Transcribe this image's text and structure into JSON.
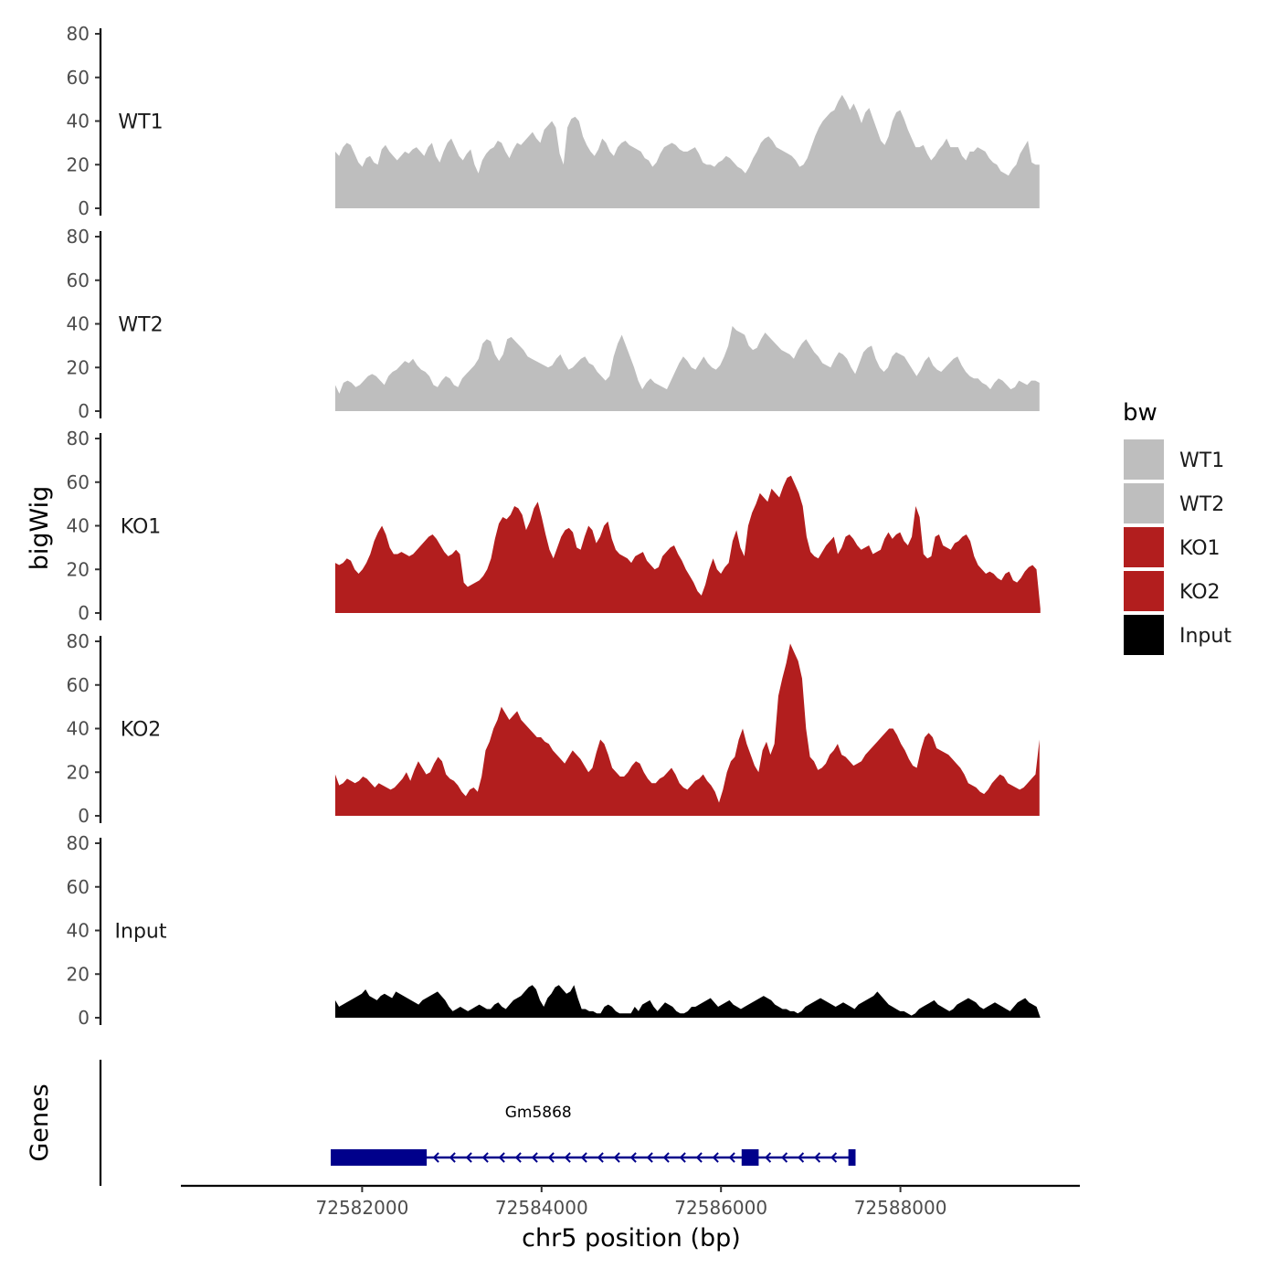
{
  "chart_data": {
    "type": "area",
    "xlabel": "chr5 position (bp)",
    "ylabel": "bigWig",
    "genes_label": "Genes",
    "xlim": [
      72580000,
      72590000
    ],
    "x_ticks": [
      72582000,
      72584000,
      72586000,
      72588000
    ],
    "x_tick_labels": [
      "72582000",
      "72584000",
      "72586000",
      "72588000"
    ],
    "ylim": [
      0,
      80
    ],
    "y_ticks": [
      0,
      20,
      40,
      60,
      80
    ],
    "y_tick_labels": [
      "0",
      "20",
      "40",
      "60",
      "80"
    ],
    "x_start": 72581700,
    "x_end": 72589560,
    "legend_title": "bw",
    "legend_placement": "right",
    "series": [
      {
        "name": "WT1",
        "color": "#bebebe",
        "x_end": 72589550,
        "values": [
          26,
          24,
          28,
          30,
          29,
          25,
          21,
          19,
          23,
          24,
          21,
          20,
          27,
          29,
          26,
          24,
          22,
          24,
          26,
          25,
          27,
          28,
          26,
          24,
          28,
          30,
          24,
          21,
          26,
          30,
          32,
          28,
          24,
          22,
          25,
          27,
          20,
          16,
          22,
          25,
          27,
          28,
          31,
          30,
          26,
          23,
          27,
          30,
          29,
          31,
          33,
          35,
          32,
          30,
          36,
          38,
          40,
          37,
          25,
          20,
          37,
          41,
          42,
          40,
          33,
          29,
          26,
          24,
          27,
          32,
          30,
          26,
          24,
          28,
          30,
          31,
          29,
          28,
          27,
          26,
          23,
          22,
          19,
          21,
          25,
          28,
          29,
          30,
          29,
          27,
          26,
          26,
          27,
          28,
          25,
          21,
          20,
          20,
          19,
          21,
          22,
          24,
          23,
          21,
          19,
          18,
          16,
          19,
          23,
          26,
          30,
          32,
          33,
          31,
          28,
          27,
          26,
          25,
          24,
          22,
          19,
          20,
          23,
          28,
          33,
          37,
          40,
          42,
          44,
          45,
          49,
          52,
          49,
          45,
          48,
          44,
          39,
          44,
          46,
          41,
          36,
          31,
          29,
          33,
          40,
          44,
          45,
          41,
          36,
          32,
          28,
          28,
          29,
          25,
          22,
          24,
          27,
          29,
          32,
          28,
          28,
          28,
          24,
          22,
          26,
          26,
          28,
          27,
          26,
          23,
          21,
          20,
          17,
          16,
          15,
          18,
          20,
          25,
          28,
          31,
          21,
          20,
          20
        ]
      },
      {
        "name": "WT2",
        "color": "#bebebe",
        "x_end": 72589550,
        "values": [
          12,
          8,
          13,
          14,
          13,
          11,
          12,
          14,
          16,
          17,
          16,
          14,
          12,
          16,
          18,
          19,
          21,
          23,
          22,
          24,
          21,
          19,
          18,
          16,
          12,
          11,
          14,
          16,
          15,
          12,
          11,
          15,
          17,
          19,
          21,
          24,
          31,
          33,
          32,
          26,
          23,
          26,
          33,
          34,
          32,
          30,
          28,
          25,
          24,
          23,
          22,
          21,
          20,
          21,
          24,
          26,
          22,
          19,
          20,
          22,
          24,
          25,
          22,
          21,
          18,
          16,
          14,
          16,
          25,
          31,
          35,
          30,
          25,
          20,
          14,
          10,
          13,
          15,
          13,
          12,
          11,
          10,
          14,
          18,
          22,
          25,
          23,
          20,
          19,
          22,
          25,
          22,
          20,
          19,
          21,
          25,
          30,
          39,
          37,
          36,
          35,
          30,
          28,
          29,
          33,
          36,
          34,
          32,
          30,
          28,
          27,
          26,
          24,
          28,
          31,
          33,
          30,
          27,
          25,
          22,
          21,
          20,
          24,
          27,
          26,
          24,
          20,
          17,
          22,
          27,
          29,
          30,
          24,
          20,
          18,
          20,
          25,
          27,
          26,
          25,
          22,
          19,
          16,
          19,
          23,
          25,
          21,
          19,
          18,
          20,
          22,
          24,
          25,
          21,
          18,
          16,
          15,
          15,
          13,
          12,
          10,
          13,
          15,
          14,
          12,
          10,
          11,
          14,
          13,
          12,
          14,
          14,
          13
        ]
      },
      {
        "name": "KO1",
        "color": "#b21e1e",
        "x_end": 72589560,
        "values": [
          23,
          22,
          23,
          25,
          24,
          20,
          18,
          20,
          23,
          27,
          33,
          37,
          40,
          36,
          30,
          27,
          27,
          28,
          27,
          26,
          27,
          29,
          31,
          33,
          35,
          36,
          34,
          31,
          28,
          26,
          27,
          29,
          27,
          14,
          12,
          13,
          14,
          15,
          17,
          20,
          25,
          34,
          41,
          44,
          43,
          45,
          49,
          48,
          45,
          38,
          42,
          48,
          51,
          44,
          36,
          29,
          25,
          30,
          35,
          38,
          39,
          37,
          30,
          29,
          35,
          40,
          38,
          32,
          35,
          40,
          42,
          34,
          29,
          27,
          26,
          25,
          23,
          26,
          27,
          28,
          24,
          22,
          20,
          21,
          26,
          28,
          30,
          31,
          27,
          24,
          20,
          17,
          14,
          10,
          8,
          13,
          20,
          25,
          20,
          18,
          21,
          23,
          33,
          38,
          30,
          26,
          40,
          46,
          50,
          55,
          53,
          51,
          57,
          55,
          53,
          58,
          62,
          63,
          59,
          55,
          49,
          35,
          28,
          26,
          25,
          28,
          31,
          33,
          35,
          27,
          30,
          35,
          36,
          34,
          31,
          29,
          30,
          31,
          27,
          28,
          29,
          34,
          37,
          34,
          36,
          37,
          33,
          31,
          35,
          49,
          44,
          27,
          25,
          26,
          35,
          36,
          31,
          30,
          29,
          32,
          33,
          35,
          36,
          33,
          26,
          22,
          20,
          18,
          19,
          18,
          16,
          15,
          18,
          19,
          15,
          14,
          16,
          19,
          21,
          22,
          20,
          2
        ]
      },
      {
        "name": "KO2",
        "color": "#b21e1e",
        "x_end": 72589550,
        "values": [
          19,
          14,
          15,
          17,
          16,
          15,
          16,
          18,
          17,
          15,
          13,
          15,
          14,
          13,
          12,
          13,
          15,
          17,
          20,
          16,
          21,
          25,
          22,
          19,
          20,
          24,
          27,
          25,
          19,
          17,
          16,
          14,
          11,
          9,
          12,
          13,
          11,
          18,
          30,
          34,
          40,
          44,
          50,
          47,
          44,
          46,
          48,
          44,
          42,
          40,
          38,
          36,
          36,
          34,
          33,
          30,
          28,
          26,
          24,
          27,
          30,
          28,
          26,
          23,
          20,
          22,
          29,
          35,
          33,
          28,
          22,
          20,
          18,
          18,
          20,
          23,
          25,
          24,
          20,
          17,
          15,
          15,
          17,
          18,
          20,
          22,
          19,
          15,
          13,
          12,
          14,
          16,
          17,
          19,
          16,
          14,
          11,
          6,
          12,
          20,
          25,
          27,
          35,
          40,
          33,
          28,
          23,
          20,
          30,
          34,
          28,
          33,
          55,
          63,
          70,
          79,
          75,
          71,
          63,
          40,
          27,
          25,
          21,
          22,
          24,
          28,
          30,
          33,
          28,
          27,
          25,
          23,
          24,
          25,
          28,
          30,
          32,
          34,
          36,
          38,
          40,
          40,
          37,
          33,
          30,
          26,
          23,
          22,
          30,
          36,
          38,
          36,
          31,
          30,
          29,
          28,
          26,
          24,
          22,
          19,
          15,
          14,
          13,
          11,
          10,
          12,
          15,
          17,
          19,
          18,
          15,
          14,
          13,
          12,
          13,
          15,
          17,
          19,
          35
        ]
      },
      {
        "name": "Input",
        "color": "#000000",
        "x_end": 72589560,
        "values": [
          8,
          5,
          6,
          7,
          8,
          9,
          10,
          11,
          13,
          10,
          9,
          8,
          10,
          11,
          10,
          9,
          12,
          11,
          10,
          9,
          8,
          7,
          6,
          8,
          9,
          10,
          11,
          12,
          10,
          8,
          5,
          3,
          4,
          5,
          4,
          3,
          4,
          5,
          6,
          5,
          4,
          4,
          6,
          7,
          5,
          4,
          6,
          8,
          9,
          10,
          12,
          14,
          15,
          13,
          8,
          5,
          9,
          11,
          14,
          15,
          13,
          11,
          12,
          15,
          9,
          4,
          4,
          3,
          3,
          2,
          2,
          5,
          6,
          5,
          3,
          2,
          2,
          2,
          2,
          5,
          3,
          6,
          7,
          8,
          5,
          3,
          5,
          7,
          6,
          5,
          3,
          2,
          2,
          3,
          5,
          5,
          6,
          7,
          8,
          9,
          7,
          5,
          6,
          7,
          8,
          6,
          5,
          4,
          5,
          6,
          7,
          8,
          9,
          10,
          9,
          8,
          6,
          5,
          4,
          4,
          3,
          3,
          2,
          3,
          5,
          6,
          7,
          8,
          9,
          8,
          7,
          6,
          5,
          6,
          7,
          6,
          5,
          4,
          6,
          7,
          8,
          9,
          10,
          12,
          10,
          8,
          6,
          5,
          4,
          3,
          3,
          2,
          1,
          2,
          4,
          5,
          6,
          7,
          8,
          6,
          5,
          4,
          3,
          4,
          6,
          7,
          8,
          9,
          8,
          7,
          5,
          4,
          5,
          6,
          7,
          6,
          5,
          4,
          3,
          5,
          7,
          8,
          9,
          7,
          6,
          5,
          0
        ]
      }
    ],
    "gene": {
      "name": "Gm5868",
      "color": "#00008b",
      "strand": "-",
      "start": 72581650,
      "end": 72587500,
      "exons": [
        [
          72581650,
          72582720
        ],
        [
          72586230,
          72586420
        ],
        [
          72587420,
          72587500
        ]
      ]
    }
  }
}
